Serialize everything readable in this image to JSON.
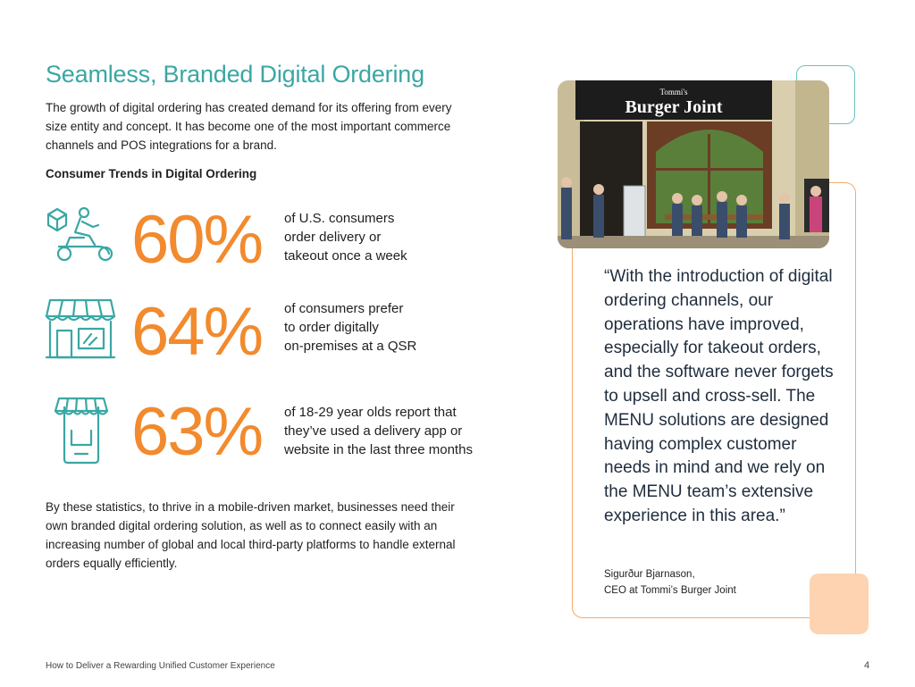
{
  "title": "Seamless, Branded Digital Ordering",
  "intro": "The growth of digital ordering has created demand for its offering from every size entity and concept. It has become one of the most important commerce channels and POS integrations for a brand.",
  "trends_heading": "Consumer Trends in Digital Ordering",
  "stats": [
    {
      "value": "60%",
      "lines": [
        "of U.S. consumers",
        "order delivery or",
        "takeout once a week"
      ],
      "icon": "delivery-scooter-icon"
    },
    {
      "value": "64%",
      "lines": [
        "of consumers prefer",
        "to order digitally",
        "on-premises at a QSR"
      ],
      "icon": "storefront-icon"
    },
    {
      "value": "63%",
      "lines": [
        "of 18-29 year olds report that",
        "they’ve used a delivery app or",
        "website in the last three months"
      ],
      "icon": "mobile-store-icon"
    }
  ],
  "conclusion": "By these statistics, to thrive in a mobile-driven market, businesses need their own branded digital ordering solution, as well as to connect easily with an increasing number of global and local third-party platforms to handle external orders equally efficiently.",
  "photo": {
    "sign_small": "Tommi's",
    "sign_large": "Burger Joint"
  },
  "quote": "“With the introduction of digital ordering channels, our operations have improved, especially for takeout orders, and the software never forgets to upsell and cross-sell. The MENU solutions are designed having complex customer needs in mind and we rely on the MENU team’s extensive experience in this area.”",
  "author": {
    "name": "Sigurður Bjarnason,",
    "title": "CEO at Tommi’s Burger Joint"
  },
  "footer": {
    "text": "How to Deliver a Rewarding Unified Customer Experience",
    "page": "4"
  },
  "colors": {
    "teal": "#3aa7a4",
    "orange": "#f28a2e",
    "peach": "#fdd3b1"
  }
}
